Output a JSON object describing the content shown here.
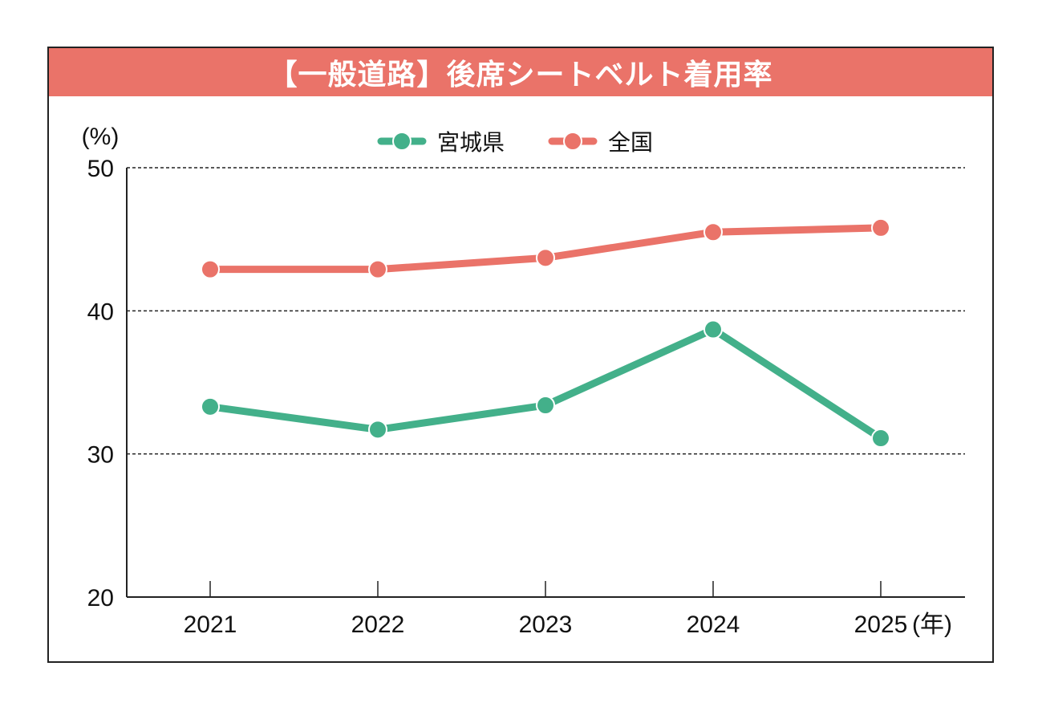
{
  "title": "【一般道路】後席シートベルト着用率",
  "chart_data": {
    "type": "line",
    "title": "【一般道路】後席シートベルト着用率",
    "xlabel": "(年)",
    "ylabel": "(%)",
    "x": [
      "2021",
      "2022",
      "2023",
      "2024",
      "2025"
    ],
    "ylim": [
      20,
      50
    ],
    "yticks": [
      20,
      30,
      40,
      50
    ],
    "grid": true,
    "legend_position": "top-center",
    "series": [
      {
        "name": "宮城県",
        "color": "#43b08a",
        "values": [
          33.3,
          31.7,
          33.4,
          38.7,
          31.1
        ]
      },
      {
        "name": "全国",
        "color": "#ea7369",
        "values": [
          42.9,
          42.9,
          43.7,
          45.5,
          45.8
        ]
      }
    ]
  },
  "colors": {
    "title_bar": "#ea7369",
    "miyagi": "#43b08a",
    "national": "#ea7369"
  }
}
